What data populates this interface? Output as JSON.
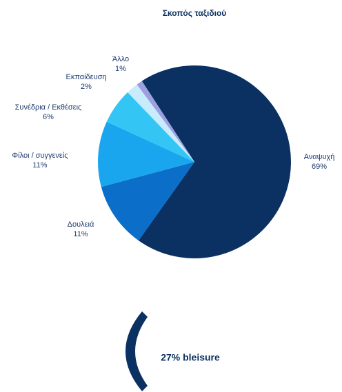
{
  "chart_data": {
    "type": "pie",
    "title": "Σκοπός ταξιδιού",
    "categories": [
      "Αναψυχή",
      "Δουλειά",
      "Φίλοι / συγγενείς",
      "Συνέδρια / Εκθέσεις",
      "Εκπαίδευση",
      "Άλλο"
    ],
    "values": [
      69,
      11,
      11,
      6,
      2,
      1
    ],
    "value_labels": [
      "69%",
      "11%",
      "11%",
      "6%",
      "2%",
      "1%"
    ],
    "colors": [
      "#0a3161",
      "#0b6fc9",
      "#1aa6ee",
      "#33c6f5",
      "#c8ecfb",
      "#9d9fe0"
    ],
    "annotation": "27% bleisure"
  }
}
